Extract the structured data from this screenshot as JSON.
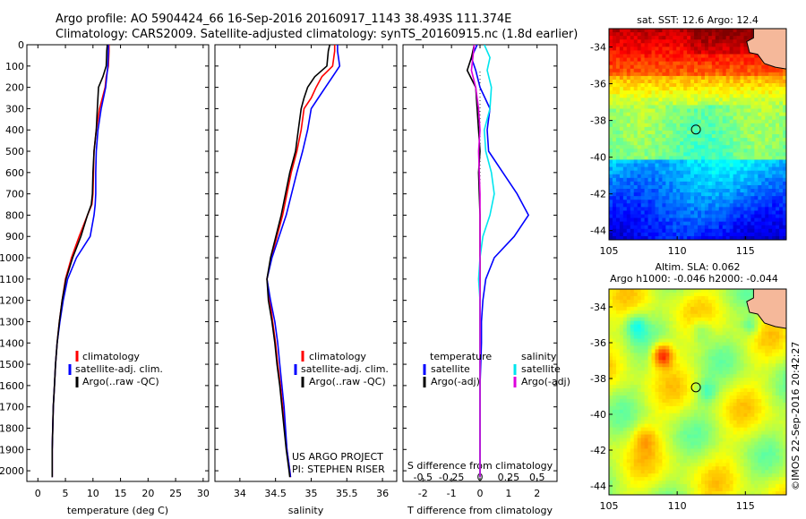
{
  "header": {
    "line1": "Argo profile: AO 5904424_66 16-Sep-2016 20160917_1143 38.493S 111.374E",
    "line2": "Climatology: CARS2009. Satellite-adjusted climatology: synTS_20160915.nc (1.8d earlier)"
  },
  "colors": {
    "climatology": "#ff0000",
    "satellite": "#0000ff",
    "argo": "#000000",
    "sat_salinity": "#00e5ee",
    "argo_salinity": "#dd00dd",
    "land": "#f5b89a"
  },
  "legend": {
    "climatology": "climatology",
    "satellite_adj": "satellite-adj. clim.",
    "argo": "Argo(..raw -QC)"
  },
  "diff_legend": {
    "temperature_head": "temperature",
    "salinity_head": "salinity",
    "satellite": "satellite",
    "argo_adj": "Argo(-adj)"
  },
  "credit": {
    "line1": "US ARGO PROJECT",
    "line2": "PI: STEPHEN RISER"
  },
  "timestamp": "©IMOS 22-Sep-2016 20:42:27",
  "chart_data": [
    {
      "type": "line",
      "xlabel": "temperature (deg C)",
      "ylabel": "",
      "xlim": [
        -2,
        31
      ],
      "ylim": [
        2050,
        0
      ],
      "xticks": [
        0,
        5,
        10,
        15,
        20,
        25,
        30
      ],
      "yticks": [
        0,
        100,
        200,
        300,
        400,
        500,
        600,
        700,
        800,
        900,
        1000,
        1100,
        1200,
        1300,
        1400,
        1500,
        1600,
        1700,
        1800,
        1900,
        2000
      ],
      "series": [
        {
          "name": "climatology",
          "color": "#ff0000",
          "x": [
            12.9,
            12.9,
            12.8,
            12.4,
            12.2,
            11.2,
            10.6,
            10.2,
            10.1,
            10.0,
            9.8,
            9.0,
            7.5,
            6.1,
            5.0,
            4.4,
            3.9,
            3.5,
            3.2,
            3.0,
            2.8,
            2.7,
            2.6,
            2.6,
            2.6
          ],
          "y": [
            0,
            30,
            100,
            150,
            200,
            300,
            400,
            500,
            600,
            700,
            750,
            800,
            900,
            1000,
            1100,
            1200,
            1300,
            1400,
            1500,
            1600,
            1700,
            1800,
            1900,
            2000,
            2030
          ]
        },
        {
          "name": "satellite-adj. clim.",
          "color": "#0000ff",
          "x": [
            12.8,
            12.8,
            12.7,
            12.5,
            12.3,
            11.5,
            10.9,
            10.6,
            10.5,
            10.5,
            10.4,
            10.2,
            9.5,
            7.0,
            5.4,
            4.6,
            4.0,
            3.5,
            3.2,
            3.0,
            2.8,
            2.7,
            2.6,
            2.6,
            2.6
          ],
          "y": [
            0,
            30,
            100,
            150,
            200,
            300,
            400,
            500,
            600,
            700,
            750,
            800,
            900,
            1000,
            1100,
            1200,
            1300,
            1400,
            1500,
            1600,
            1700,
            1800,
            1900,
            2000,
            2030
          ]
        },
        {
          "name": "Argo(..raw -QC)",
          "color": "#000000",
          "x": [
            12.6,
            12.5,
            12.4,
            11.8,
            11.0,
            10.8,
            10.6,
            10.2,
            10.0,
            9.9,
            9.7,
            9.0,
            7.8,
            6.3,
            5.1,
            4.4,
            3.9,
            3.5,
            3.2,
            3.0,
            2.8,
            2.7,
            2.6,
            2.6,
            2.6
          ],
          "y": [
            0,
            30,
            100,
            150,
            200,
            300,
            400,
            500,
            600,
            700,
            750,
            800,
            900,
            1000,
            1100,
            1200,
            1300,
            1400,
            1500,
            1600,
            1700,
            1800,
            1900,
            2000,
            2030
          ]
        }
      ]
    },
    {
      "type": "line",
      "xlabel": "salinity",
      "ylabel": "",
      "xlim": [
        33.65,
        36.2
      ],
      "ylim": [
        2050,
        0
      ],
      "xticks": [
        34,
        34.5,
        35,
        35.5,
        36
      ],
      "series": [
        {
          "name": "climatology",
          "color": "#ff0000",
          "x": [
            35.33,
            35.33,
            35.3,
            35.15,
            35.07,
            35.0,
            34.9,
            34.86,
            34.8,
            34.72,
            34.6,
            34.44,
            34.38,
            34.42,
            34.46,
            34.5,
            34.53,
            34.57,
            34.6,
            34.63,
            34.66,
            34.68,
            34.7,
            34.71
          ],
          "y": [
            0,
            30,
            100,
            150,
            200,
            250,
            300,
            400,
            500,
            600,
            800,
            1000,
            1100,
            1200,
            1300,
            1400,
            1500,
            1600,
            1700,
            1800,
            1900,
            1950,
            2000,
            2030
          ]
        },
        {
          "name": "satellite-adj. clim.",
          "color": "#0000ff",
          "x": [
            35.37,
            35.37,
            35.4,
            35.3,
            35.2,
            35.1,
            35.0,
            34.95,
            34.88,
            34.8,
            34.65,
            34.45,
            34.38,
            34.43,
            34.49,
            34.53,
            34.56,
            34.59,
            34.62,
            34.64,
            34.66,
            34.68,
            34.7,
            34.71
          ],
          "y": [
            0,
            30,
            100,
            150,
            200,
            250,
            300,
            400,
            500,
            600,
            800,
            1000,
            1100,
            1200,
            1300,
            1400,
            1500,
            1600,
            1700,
            1800,
            1900,
            1950,
            2000,
            2030
          ]
        },
        {
          "name": "Argo(..raw -QC)",
          "color": "#000000",
          "x": [
            35.26,
            35.24,
            35.22,
            35.05,
            34.95,
            34.9,
            34.86,
            34.82,
            34.78,
            34.7,
            34.58,
            34.43,
            34.38,
            34.4,
            34.45,
            34.49,
            34.52,
            34.56,
            34.59,
            34.62,
            34.65,
            34.67,
            34.69,
            34.7
          ],
          "y": [
            0,
            30,
            100,
            150,
            200,
            250,
            300,
            400,
            500,
            600,
            800,
            1000,
            1100,
            1200,
            1300,
            1400,
            1500,
            1600,
            1700,
            1800,
            1900,
            1950,
            2000,
            2030
          ]
        }
      ]
    },
    {
      "type": "line",
      "xlabel": "T difference from climatology",
      "xlabel_top": "S difference from climatology",
      "xlim": [
        -2.7,
        2.7
      ],
      "ylim": [
        2050,
        0
      ],
      "xticks": [
        -2,
        -1,
        0,
        1,
        2
      ],
      "xticks_top": [
        "-0.5",
        "-0.25",
        "0",
        "0.25",
        "0.5"
      ],
      "series": [
        {
          "name": "temperature satellite",
          "color": "#0000ff",
          "x": [
            -0.1,
            -0.3,
            -0.15,
            0.0,
            0.35,
            0.25,
            0.3,
            0.8,
            1.3,
            1.7,
            1.2,
            0.5,
            0.2,
            0.1,
            0.05,
            0.05,
            0.0,
            0.0,
            0.0,
            0.0
          ],
          "y": [
            0,
            60,
            120,
            200,
            300,
            400,
            500,
            600,
            700,
            800,
            900,
            1000,
            1100,
            1200,
            1300,
            1400,
            1600,
            1800,
            2000,
            2030
          ]
        },
        {
          "name": "temperature Argo(-adj)",
          "color": "#000000",
          "x": [
            -0.2,
            -0.3,
            -0.45,
            -0.15,
            -0.1,
            -0.05,
            0.0,
            -0.05,
            0.0,
            0.0,
            0.0,
            0.0,
            0.0,
            0.0,
            0.0
          ],
          "y": [
            0,
            60,
            120,
            200,
            300,
            400,
            500,
            600,
            800,
            1000,
            1200,
            1400,
            1600,
            1800,
            2030
          ]
        },
        {
          "name": "salinity satellite",
          "color": "#00e5ee",
          "x": [
            0.15,
            0.35,
            0.25,
            0.4,
            0.35,
            0.15,
            0.2,
            0.4,
            0.5,
            0.35,
            0.1,
            0.0,
            -0.05,
            0.0,
            0.0,
            0.0
          ],
          "y": [
            0,
            60,
            120,
            200,
            300,
            400,
            500,
            600,
            700,
            800,
            900,
            1000,
            1100,
            1200,
            1600,
            2030
          ]
        },
        {
          "name": "salinity Argo(-adj)",
          "color": "#dd00dd",
          "x": [
            -0.2,
            -0.25,
            -0.3,
            -0.15,
            -0.05,
            0.0,
            -0.05,
            0.0,
            0.0,
            0.0,
            0.0
          ],
          "y": [
            0,
            60,
            120,
            200,
            300,
            400,
            500,
            700,
            1000,
            1500,
            2030
          ]
        }
      ]
    },
    {
      "type": "heatmap",
      "title": "sat. SST: 12.6 Argo: 12.4",
      "xlim": [
        105,
        118
      ],
      "ylim": [
        -44.5,
        -33
      ],
      "xticks": [
        105,
        110,
        115
      ],
      "yticks": [
        -34,
        -36,
        -38,
        -40,
        -42,
        -44
      ],
      "argo_position": [
        111.374,
        -38.493
      ]
    },
    {
      "type": "heatmap",
      "title_line1": "Altim. SLA: 0.062",
      "title_line2": "Argo h1000: -0.046 h2000: -0.044",
      "xlim": [
        105,
        118
      ],
      "ylim": [
        -44.5,
        -33
      ],
      "xticks": [
        105,
        110,
        115
      ],
      "yticks": [
        -34,
        -36,
        -38,
        -40,
        -42,
        -44
      ],
      "argo_position": [
        111.374,
        -38.493
      ]
    }
  ]
}
